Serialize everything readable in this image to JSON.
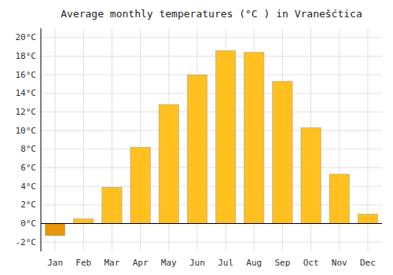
{
  "chart_data": {
    "type": "bar",
    "title": "Average monthly temperatures (°C ) in Vranešćtica",
    "categories": [
      "Jan",
      "Feb",
      "Mar",
      "Apr",
      "May",
      "Jun",
      "Jul",
      "Aug",
      "Sep",
      "Oct",
      "Nov",
      "Dec"
    ],
    "values": [
      -1.3,
      0.5,
      3.9,
      8.2,
      12.8,
      16.0,
      18.6,
      18.4,
      15.3,
      10.3,
      5.3,
      1.0
    ],
    "colors": [
      "#E8960A",
      "#FFC020",
      "#FFC020",
      "#FFC020",
      "#FFC020",
      "#FFC020",
      "#FFC020",
      "#FFC020",
      "#FFC020",
      "#FFC020",
      "#FFC020",
      "#FFC020"
    ],
    "ylim": [
      -3,
      21
    ],
    "yticks": [
      {
        "value": -2,
        "label": "-2°C"
      },
      {
        "value": 0,
        "label": "0°C"
      },
      {
        "value": 2,
        "label": "2°C"
      },
      {
        "value": 4,
        "label": "4°C"
      },
      {
        "value": 6,
        "label": "6°C"
      },
      {
        "value": 8,
        "label": "8°C"
      },
      {
        "value": 10,
        "label": "10°C"
      },
      {
        "value": 12,
        "label": "12°C"
      },
      {
        "value": 14,
        "label": "14°C"
      },
      {
        "value": 16,
        "label": "16°C"
      },
      {
        "value": 18,
        "label": "18°C"
      },
      {
        "value": 20,
        "label": "20°C"
      }
    ],
    "grid": true
  }
}
